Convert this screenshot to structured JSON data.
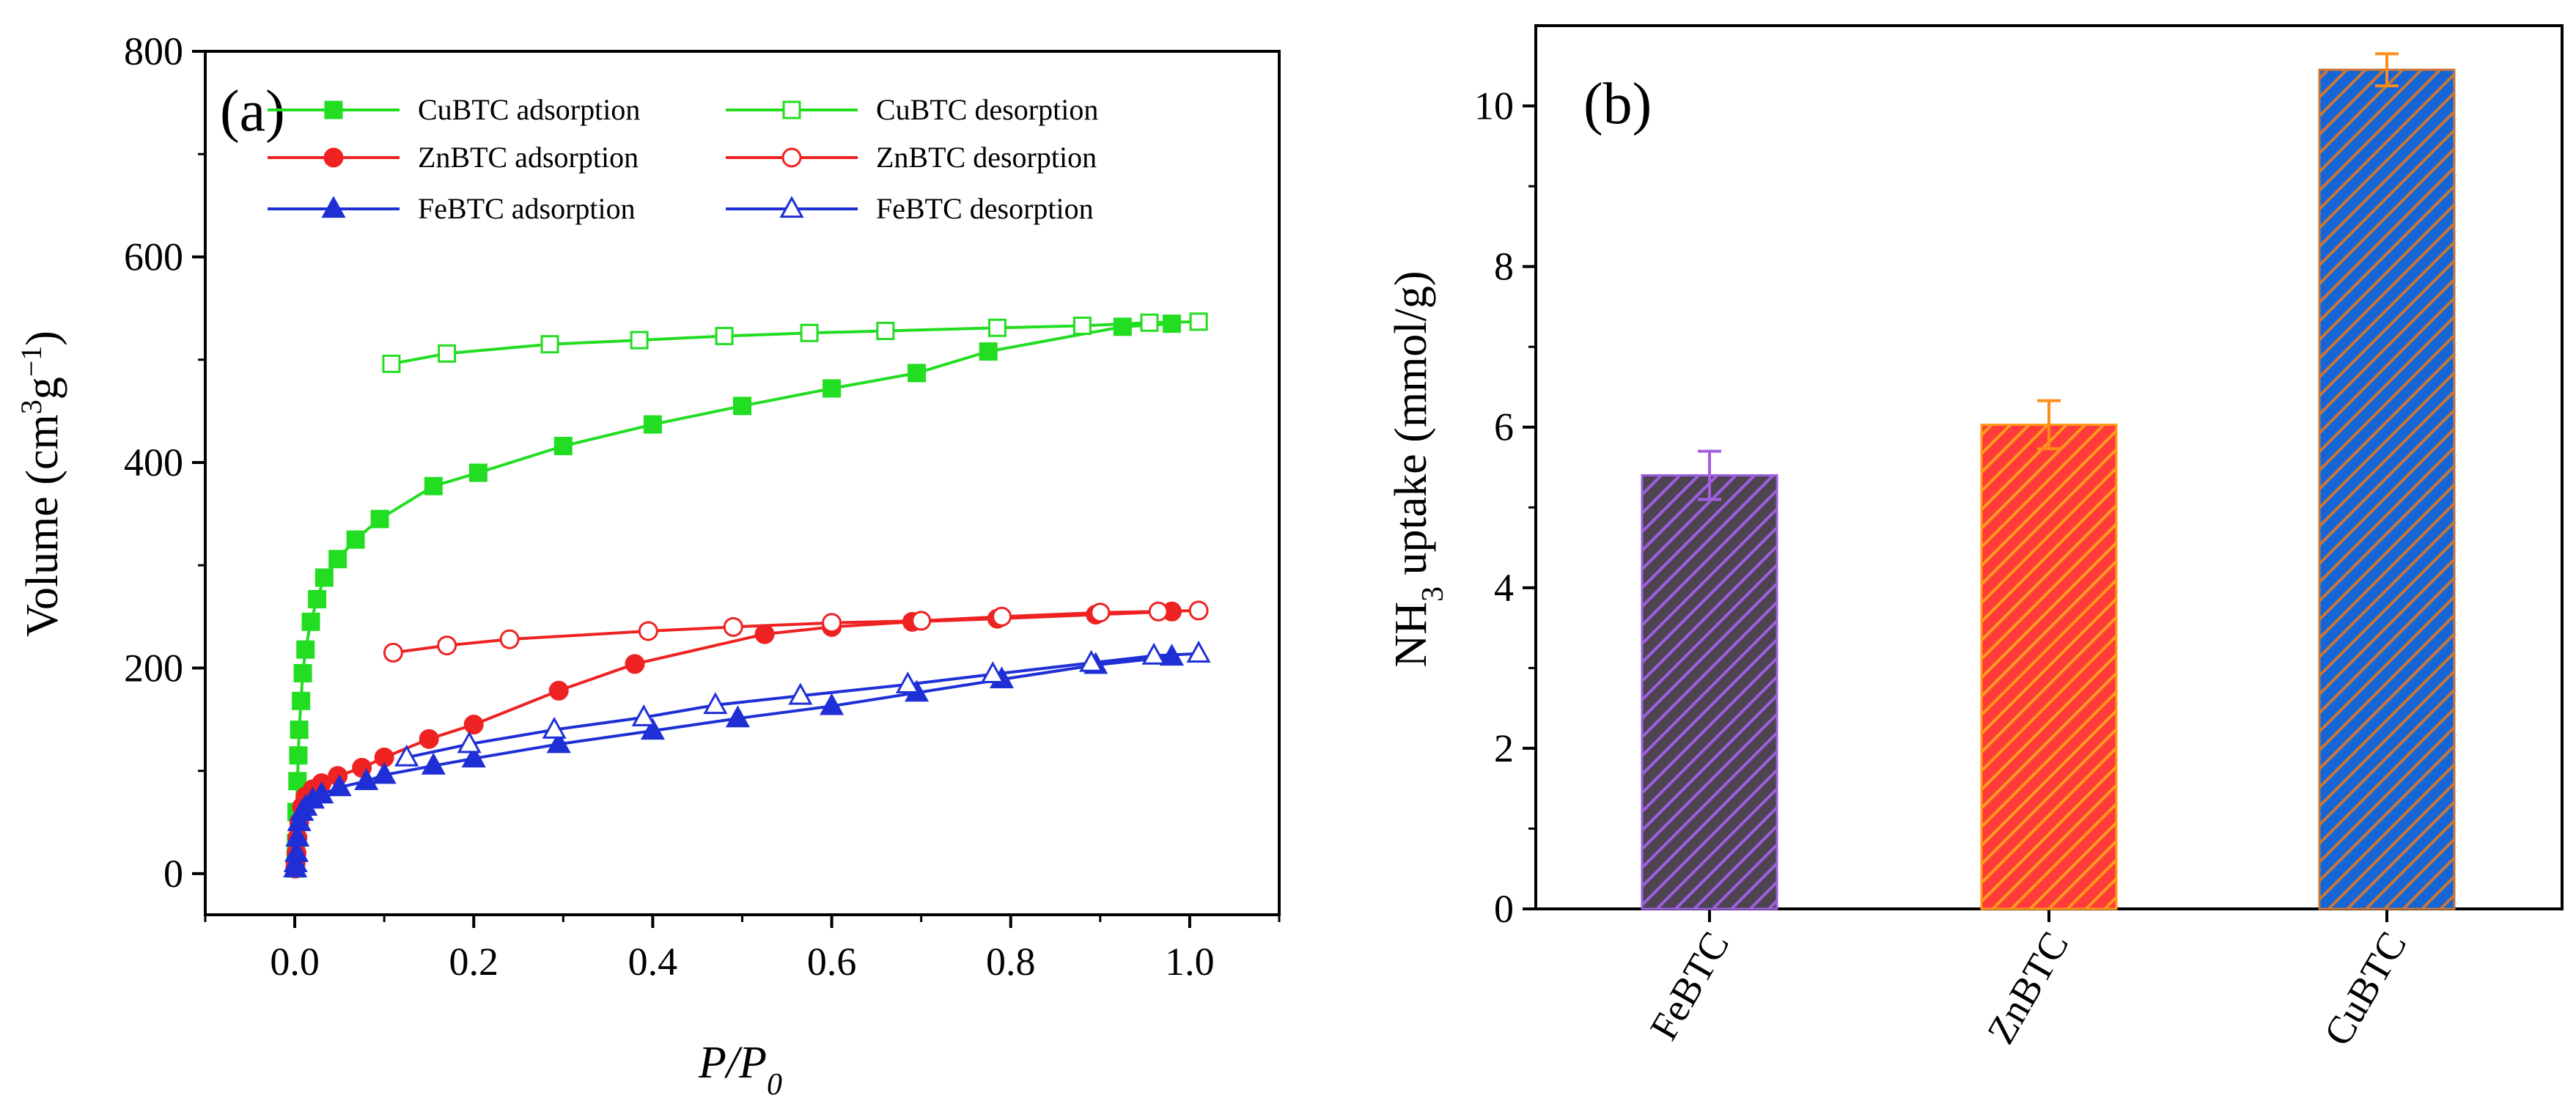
{
  "chart_data": [
    {
      "type": "line",
      "panel_label": "(a)",
      "xlabel": {
        "p": "P",
        "slash": "/",
        "p0": "P",
        "sub": "0"
      },
      "ylabel": {
        "before": "Volume (cm",
        "sup1": "3",
        "mid": "g",
        "sup2": "−1",
        "after": ")"
      },
      "xlim": [
        -0.1,
        1.1
      ],
      "ylim": [
        -40,
        800
      ],
      "xticks": [
        "0.0",
        "0.2",
        "0.4",
        "0.6",
        "0.8",
        "1.0"
      ],
      "xtick_values": [
        0.0,
        0.2,
        0.4,
        0.6,
        0.8,
        1.0
      ],
      "yticks": [
        "0",
        "200",
        "400",
        "600",
        "800"
      ],
      "ytick_values": [
        0,
        200,
        400,
        600,
        800
      ],
      "legend_position": "top",
      "series": [
        {
          "name": "CuBTC adsorption",
          "color": "#22dd22",
          "marker": "square",
          "filled": true,
          "x": [
            0.0005,
            0.001,
            0.0015,
            0.002,
            0.003,
            0.004,
            0.005,
            0.007,
            0.009,
            0.012,
            0.018,
            0.025,
            0.033,
            0.048,
            0.068,
            0.095,
            0.155,
            0.205,
            0.3,
            0.4,
            0.5,
            0.6,
            0.695,
            0.775,
            0.925,
            0.98
          ],
          "y": [
            5,
            15,
            30,
            60,
            90,
            115,
            140,
            168,
            195,
            218,
            245,
            267,
            288,
            306,
            325,
            345,
            377,
            390,
            416,
            437,
            455,
            472,
            487,
            508,
            532,
            535
          ]
        },
        {
          "name": "CuBTC desorption",
          "color": "#22dd22",
          "marker": "square",
          "filled": false,
          "x": [
            1.01,
            0.955,
            0.88,
            0.785,
            0.66,
            0.575,
            0.48,
            0.385,
            0.285,
            0.17,
            0.108
          ],
          "y": [
            537,
            536,
            533,
            531,
            528,
            526,
            523,
            519,
            515,
            506,
            496
          ]
        },
        {
          "name": "ZnBTC adsorption",
          "color": "#ee2222",
          "marker": "circle",
          "filled": true,
          "x": [
            0.0005,
            0.001,
            0.002,
            0.003,
            0.005,
            0.008,
            0.012,
            0.02,
            0.03,
            0.048,
            0.075,
            0.1,
            0.15,
            0.2,
            0.295,
            0.38,
            0.525,
            0.6,
            0.69,
            0.785,
            0.895,
            0.98
          ],
          "y": [
            5,
            10,
            20,
            35,
            50,
            65,
            75,
            82,
            88,
            95,
            103,
            113,
            131,
            145,
            178,
            204,
            233,
            240,
            245,
            248,
            252,
            255
          ]
        },
        {
          "name": "ZnBTC desorption",
          "color": "#ee2222",
          "marker": "circle",
          "filled": false,
          "x": [
            1.01,
            0.965,
            0.9,
            0.79,
            0.7,
            0.6,
            0.49,
            0.395,
            0.24,
            0.17,
            0.11
          ],
          "y": [
            256,
            255,
            254,
            250,
            246,
            244,
            240,
            236,
            228,
            222,
            215
          ]
        },
        {
          "name": "FeBTC adsorption",
          "color": "#1e2fd6",
          "marker": "triangle",
          "filled": true,
          "x": [
            0.0005,
            0.001,
            0.002,
            0.003,
            0.005,
            0.008,
            0.012,
            0.02,
            0.03,
            0.05,
            0.08,
            0.1,
            0.155,
            0.2,
            0.295,
            0.4,
            0.495,
            0.6,
            0.695,
            0.79,
            0.895,
            0.98
          ],
          "y": [
            5,
            10,
            20,
            35,
            50,
            60,
            65,
            72,
            77,
            84,
            90,
            96,
            105,
            112,
            126,
            139,
            151,
            163,
            176,
            189,
            203,
            211
          ]
        },
        {
          "name": "FeBTC  desorption",
          "color": "#1e2fd6",
          "marker": "triangle",
          "filled": false,
          "x": [
            1.01,
            0.96,
            0.89,
            0.78,
            0.685,
            0.565,
            0.47,
            0.39,
            0.29,
            0.195,
            0.125
          ],
          "y": [
            214,
            212,
            205,
            194,
            184,
            173,
            164,
            152,
            140,
            126,
            113
          ]
        }
      ]
    },
    {
      "type": "bar",
      "panel_label": "(b)",
      "xlabel": "",
      "ylabel": {
        "before": "NH",
        "sub": "3",
        "after": " uptake (mmol/g)"
      },
      "ylim": [
        0,
        11
      ],
      "yticks": [
        "0",
        "2",
        "4",
        "6",
        "8",
        "10"
      ],
      "ytick_values": [
        0,
        2,
        4,
        6,
        8,
        10
      ],
      "categories": [
        "FeBTC",
        "ZnBTC",
        "CuBTC"
      ],
      "values": [
        5.4,
        6.03,
        10.45
      ],
      "errors": [
        0.3,
        0.3,
        0.2
      ],
      "colors": [
        "#4d4450",
        "#ff3b3b",
        "#1565d6"
      ],
      "hatch_colors": [
        "#9c5fe0",
        "#ff9a1a",
        "#c6773a"
      ],
      "error_colors": [
        "#a55ee0",
        "#ff8c1a",
        "#ff8c1a"
      ]
    }
  ]
}
